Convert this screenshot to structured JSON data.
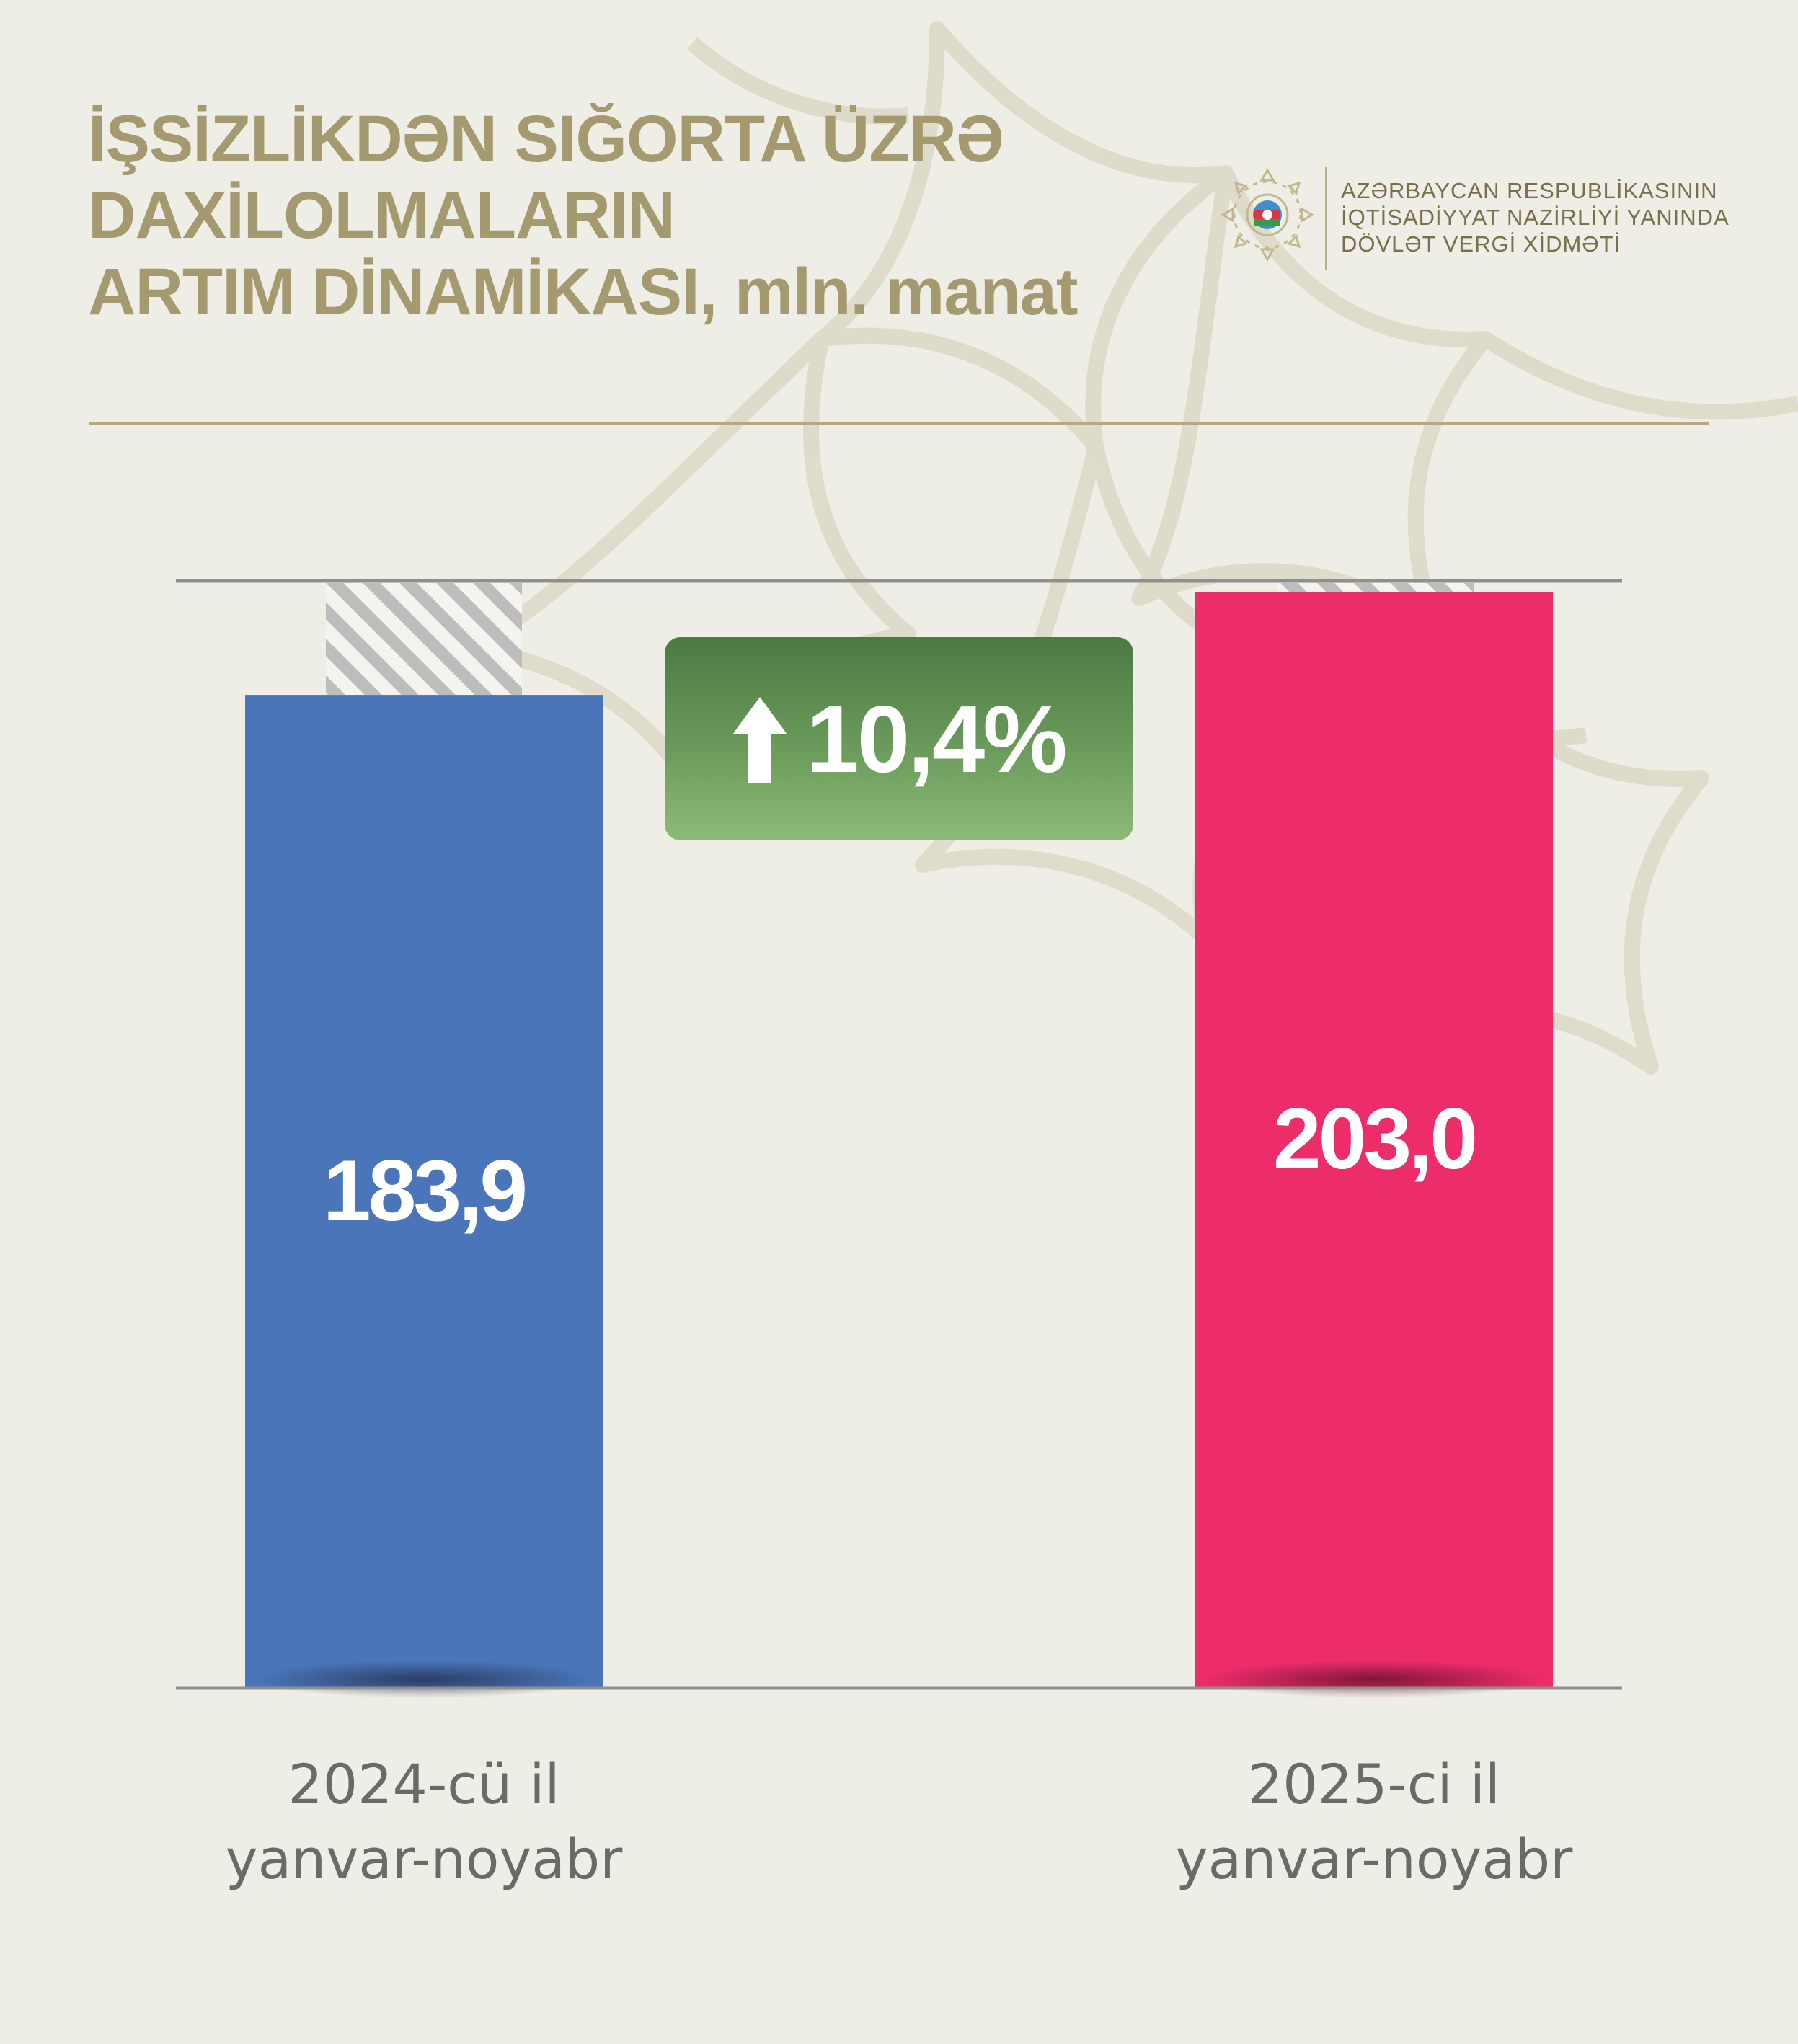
{
  "header": {
    "title_lines": [
      "İŞSİZLİKDƏN SIĞORTA ÜZRƏ",
      "DAXİLOLMALARIN",
      "ARTIM DİNAMİKASI, mln. manat"
    ]
  },
  "logo": {
    "lines": [
      "AZƏRBAYCAN RESPUBLİKASININ",
      "İQTİSADİYYAT NAZİRLİYİ YANINDA",
      "DÖVLƏT VERGİ XİDMƏTİ"
    ]
  },
  "badge": {
    "text": "10,4%",
    "icon": "arrow-up-icon"
  },
  "colors": {
    "title": "#a59a6f",
    "bar_2024": "#4a75b8",
    "bar_2025": "#ec2d6a",
    "badge_green": "#5e8f52"
  },
  "chart_data": {
    "type": "bar",
    "title": "İŞSİZLİKDƏN SIĞORTA ÜZRƏ DAXİLOLMALARIN ARTIM DİNAMİKASI, mln. manat",
    "categories": [
      "2024-cü il yanvar-noyabr",
      "2025-ci il yanvar-noyabr"
    ],
    "category_lines": [
      [
        "2024-cü il",
        "yanvar-noyabr"
      ],
      [
        "2025-ci il",
        "yanvar-noyabr"
      ]
    ],
    "values": [
      183.9,
      203.0
    ],
    "value_labels": [
      "183,9",
      "203,0"
    ],
    "ylim": [
      0,
      205
    ],
    "growth": "10,4%",
    "grid": false,
    "legend": "none"
  }
}
